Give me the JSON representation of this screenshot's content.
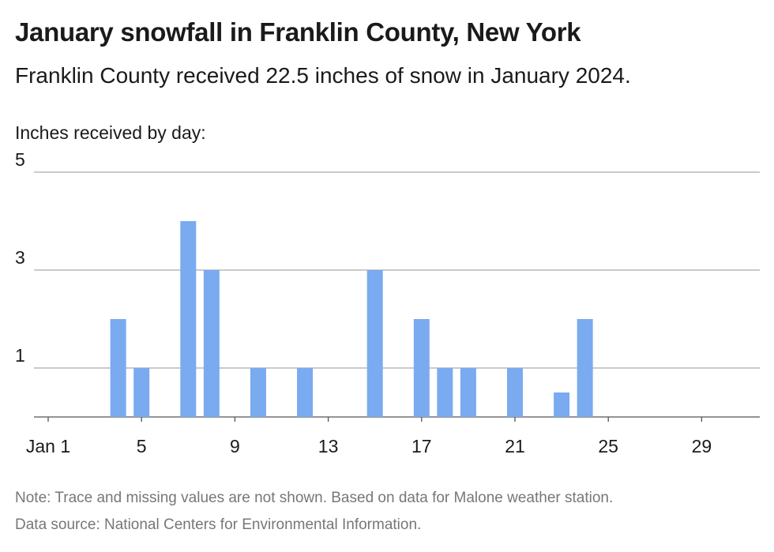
{
  "chart_data": {
    "type": "bar",
    "title": "January snowfall in Franklin County, New York",
    "subtitle": "Franklin County received 22.5 inches of snow in January 2024.",
    "ylabel": "Inches received by day:",
    "xlabel": "",
    "x": [
      4,
      5,
      7,
      8,
      10,
      12,
      15,
      17,
      18,
      19,
      21,
      23,
      24
    ],
    "values": [
      2,
      1,
      4,
      3,
      1,
      1,
      3,
      2,
      1,
      1,
      1,
      0.5,
      2
    ],
    "xlim": [
      1,
      31
    ],
    "ylim": [
      0,
      5
    ],
    "y_ticks": [
      1,
      3,
      5
    ],
    "x_ticks": [
      1,
      5,
      9,
      13,
      17,
      21,
      25,
      29
    ],
    "x_tick_labels": [
      "Jan 1",
      "5",
      "9",
      "13",
      "17",
      "21",
      "25",
      "29"
    ],
    "grid": true,
    "bar_color": "#7aaaf0",
    "grid_color": "#aaaaaa"
  },
  "footer": {
    "note": "Note: Trace and missing values are not shown. Based on data for Malone weather station.",
    "source": "Data source: National Centers for Environmental Information."
  }
}
